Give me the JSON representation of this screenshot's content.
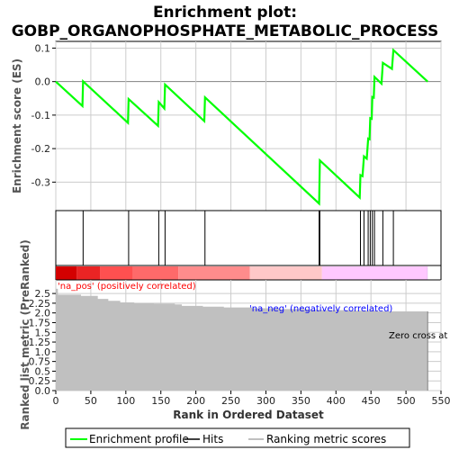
{
  "title_line1": "Enrichment plot:",
  "title_line2": "GOBP_ORGANOPHOSPHATE_METABOLIC_PROCESS",
  "colors": {
    "profile": "#00ff00",
    "hits": "#000000",
    "metric_fill": "#c0c0c0",
    "pos_label": "#ff0000",
    "neg_label": "#0000ff",
    "grid": "#cccccc",
    "zero_line": "#808080",
    "heat": [
      "#d40000",
      "#ea2424",
      "#ff5050",
      "#ff6a6a",
      "#ff8c8c",
      "#ffc8c8",
      "#ffc8ff",
      "#e7b8f2"
    ]
  },
  "chart_data": [
    {
      "type": "line",
      "name": "enrichment-profile",
      "ylabel": "Enrichment score (ES)",
      "xlim": [
        0,
        550
      ],
      "ylim": [
        -0.385,
        0.12
      ],
      "yticks": [
        0.1,
        0.0,
        -0.1,
        -0.2,
        -0.3
      ],
      "ytick_labels": [
        "0.1",
        "0.0",
        "-0.1",
        "-0.2",
        "-0.3"
      ],
      "grid": true,
      "points": [
        [
          0,
          0.0
        ],
        [
          38,
          -0.073
        ],
        [
          39,
          0.001
        ],
        [
          103,
          -0.123
        ],
        [
          104,
          -0.052
        ],
        [
          146,
          -0.132
        ],
        [
          147,
          -0.061
        ],
        [
          155,
          -0.08
        ],
        [
          156,
          -0.009
        ],
        [
          212,
          -0.118
        ],
        [
          213,
          -0.047
        ],
        [
          376,
          -0.364
        ],
        [
          377,
          -0.235
        ],
        [
          434,
          -0.346
        ],
        [
          435,
          -0.279
        ],
        [
          438,
          -0.282
        ],
        [
          440,
          -0.223
        ],
        [
          444,
          -0.23
        ],
        [
          446,
          -0.17
        ],
        [
          448,
          -0.172
        ],
        [
          449,
          -0.109
        ],
        [
          451,
          -0.111
        ],
        [
          452,
          -0.046
        ],
        [
          454,
          -0.048
        ],
        [
          455,
          0.014
        ],
        [
          465,
          -0.006
        ],
        [
          467,
          0.056
        ],
        [
          480,
          0.038
        ],
        [
          482,
          0.094
        ],
        [
          531,
          0.0
        ]
      ]
    },
    {
      "type": "hits",
      "name": "hits",
      "hit_ranks": [
        39,
        104,
        147,
        156,
        213,
        376,
        377,
        435,
        440,
        446,
        449,
        452,
        455,
        467,
        482
      ]
    },
    {
      "type": "area",
      "name": "ranked-list-metric",
      "xlabel": "Rank in Ordered Dataset",
      "ylabel": "Ranked list metric (PreRanked)",
      "xlim": [
        0,
        550
      ],
      "ylim": [
        0,
        2.85
      ],
      "xticks": [
        0,
        50,
        100,
        150,
        200,
        250,
        300,
        350,
        400,
        450,
        500,
        550
      ],
      "yticks": [
        0.0,
        0.25,
        0.5,
        0.75,
        1.0,
        1.25,
        1.5,
        1.75,
        2.0,
        2.25,
        2.5
      ],
      "ytick_labels": [
        "0.0",
        "0.25",
        "0.5",
        "0.75",
        "1.0",
        "1.25",
        "1.5",
        "1.75",
        "2.0",
        "2.25",
        "2.5"
      ],
      "steps": [
        [
          0,
          2.62
        ],
        [
          3,
          2.47
        ],
        [
          36,
          2.44
        ],
        [
          60,
          2.36
        ],
        [
          75,
          2.31
        ],
        [
          92,
          2.27
        ],
        [
          112,
          2.25
        ],
        [
          140,
          2.24
        ],
        [
          170,
          2.22
        ],
        [
          180,
          2.18
        ],
        [
          210,
          2.16
        ],
        [
          240,
          2.14
        ],
        [
          280,
          2.12
        ],
        [
          320,
          2.1
        ],
        [
          360,
          2.08
        ],
        [
          380,
          2.07
        ],
        [
          420,
          2.06
        ],
        [
          460,
          2.04
        ],
        [
          530,
          2.04
        ]
      ],
      "end_rank": 531,
      "annotations": {
        "pos": "'na_pos' (positively correlated)",
        "neg": "'na_neg' (negatively correlated)",
        "zero_cross": "Zero cross at"
      }
    }
  ],
  "heatmap_segments": [
    [
      0,
      30
    ],
    [
      30,
      63
    ],
    [
      63,
      110
    ],
    [
      110,
      175
    ],
    [
      175,
      277
    ],
    [
      277,
      380
    ],
    [
      380,
      530
    ],
    [
      530,
      531
    ]
  ],
  "legend": {
    "profile": "Enrichment profile",
    "hits": "Hits",
    "metric": "Ranking metric scores"
  }
}
